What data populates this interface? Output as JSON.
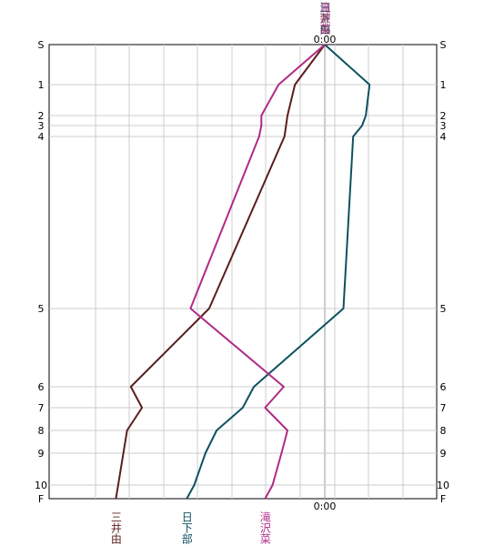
{
  "chart_data": {
    "type": "line",
    "orientation": "vertical-stations",
    "stations": [
      "S",
      "1",
      "2",
      "3",
      "4",
      "5",
      "6",
      "7",
      "8",
      "9",
      "10",
      "F"
    ],
    "time_label_top": "0:00",
    "time_label_bottom": "0:00",
    "grid": true,
    "series": [
      {
        "name": "三井由",
        "color": "#5a1e1e",
        "values": [
          0,
          -0.4,
          -0.5,
          -0.52,
          -0.54,
          -1.55,
          -2.6,
          -2.45,
          -2.65,
          -2.7,
          -2.77,
          -2.8
        ]
      },
      {
        "name": "日下部",
        "color": "#0e5160",
        "values": [
          0,
          0.6,
          0.55,
          0.5,
          0.38,
          0.25,
          -0.95,
          -1.1,
          -1.45,
          -1.6,
          -1.75,
          -1.85
        ]
      },
      {
        "name": "滝沢菜",
        "color": "#b02a86",
        "values": [
          0,
          -0.62,
          -0.85,
          -0.85,
          -0.88,
          -1.8,
          -0.55,
          -0.8,
          -0.5,
          -0.58,
          -0.7,
          -0.8
        ]
      }
    ]
  }
}
